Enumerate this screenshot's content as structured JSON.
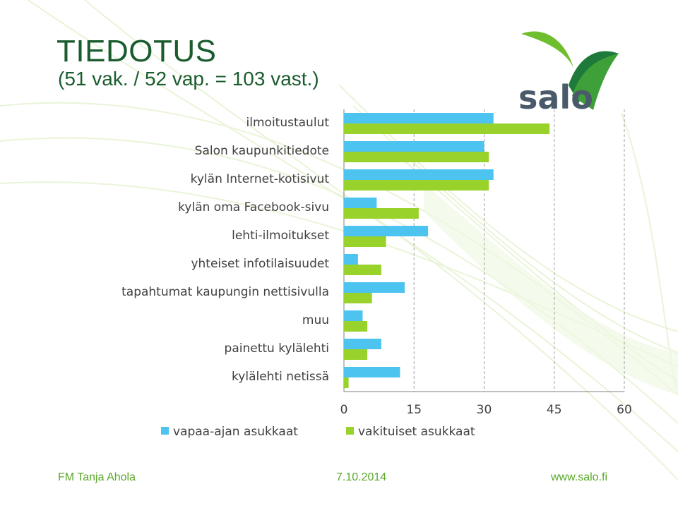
{
  "slide": {
    "title": "TIEDOTUS",
    "subtitle": "(51 vak. / 52 vap. = 103 vast.)",
    "logo_text": "salo"
  },
  "footer": {
    "author": "FM Tanja Ahola",
    "date": "7.10.2014",
    "url": "www.salo.fi"
  },
  "colors": {
    "title": "#1a5c2e",
    "vapaa": "#4dc3f0",
    "vakituiset": "#9ad22c",
    "footer": "#5aa82a"
  },
  "chart_data": {
    "type": "bar",
    "orientation": "horizontal",
    "categories": [
      "ilmoitustaulut",
      "Salon kaupunkitiedote",
      "kylän Internet-kotisivut",
      "kylän oma Facebook-sivu",
      "lehti-ilmoitukset",
      "yhteiset infotilaisuudet",
      "tapahtumat kaupungin nettisivulla",
      "muu",
      "painettu kylälehti",
      "kylälehti netissä"
    ],
    "series": [
      {
        "name": "vapaa-ajan asukkaat",
        "values": [
          32,
          30,
          32,
          7,
          18,
          3,
          13,
          4,
          8,
          12
        ]
      },
      {
        "name": "vakituiset asukkaat",
        "values": [
          44,
          31,
          31,
          16,
          9,
          8,
          6,
          5,
          5,
          1
        ]
      }
    ],
    "xlim": [
      0,
      60
    ],
    "xticks": [
      0,
      15,
      30,
      45,
      60
    ],
    "grid": "vertical-dashed",
    "legend": "bottom"
  }
}
